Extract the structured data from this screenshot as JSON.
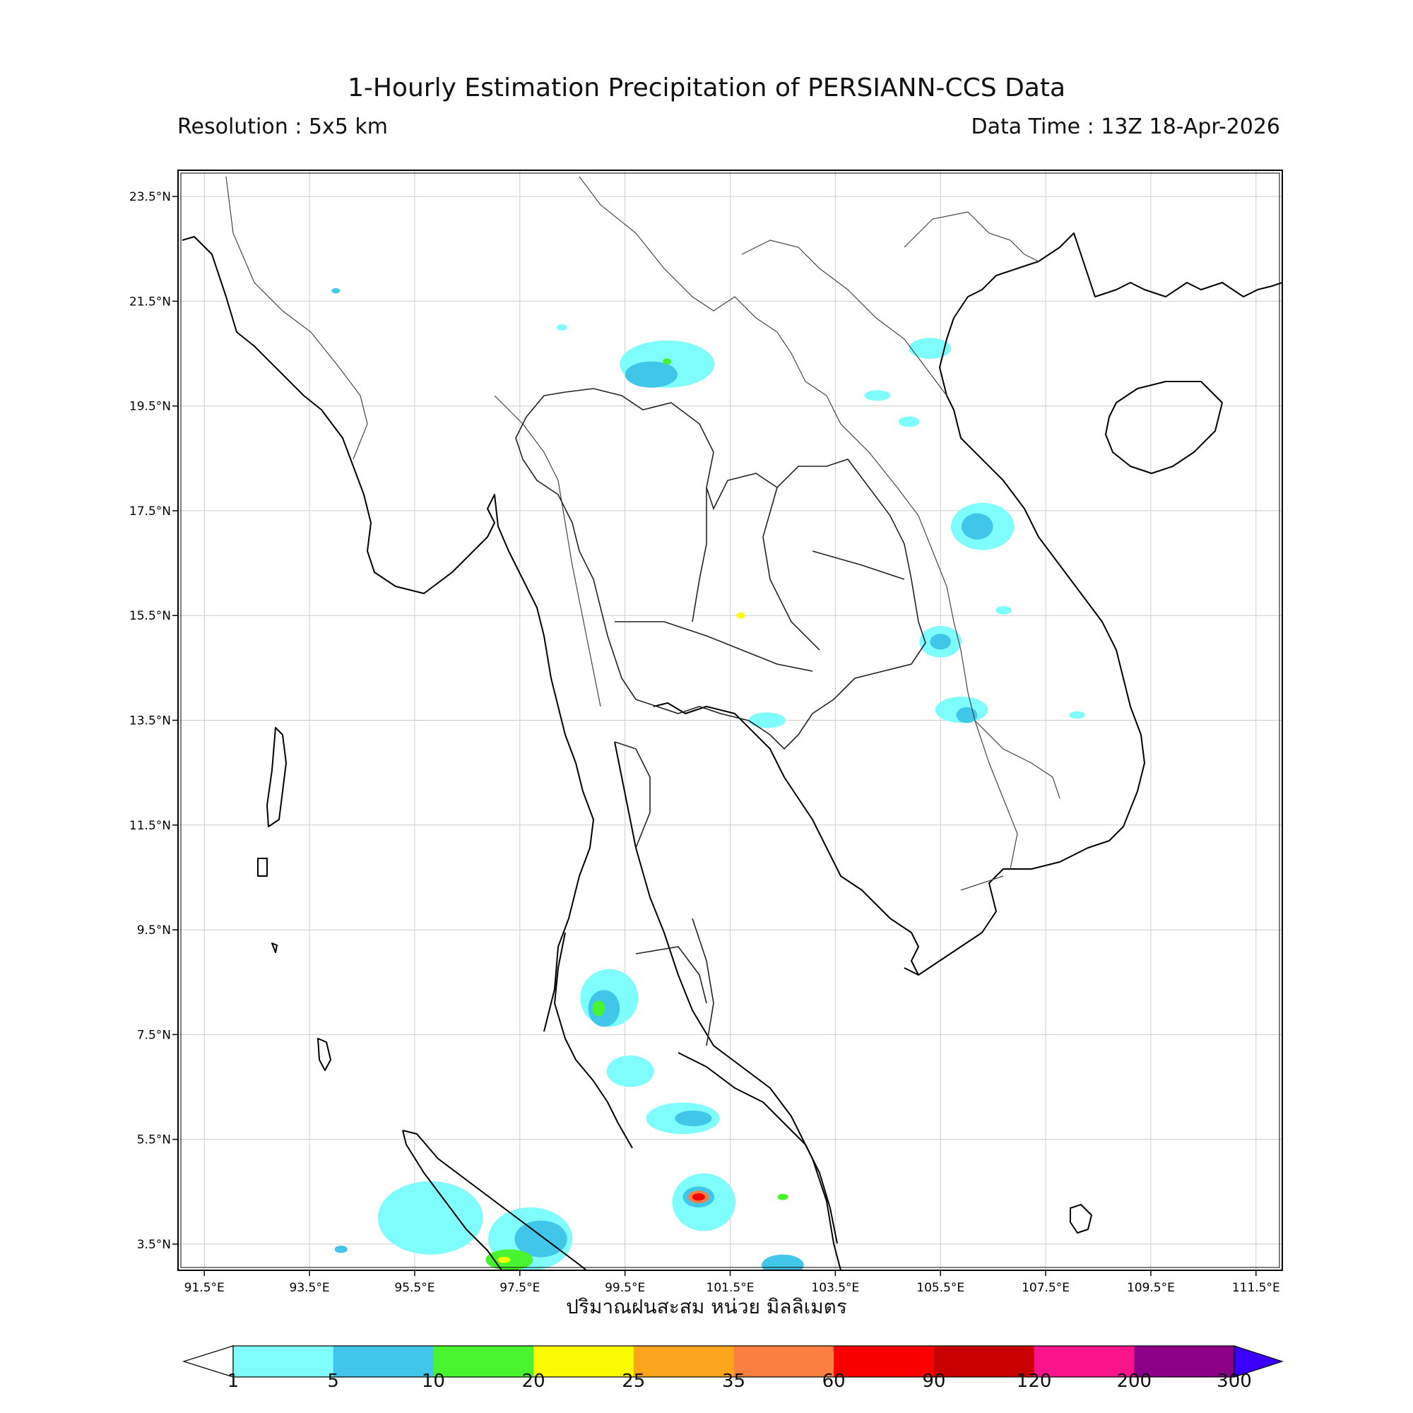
{
  "header": {
    "title": "1-Hourly Estimation Precipitation of PERSIANN-CCS Data",
    "resolution": "Resolution : 5x5 km",
    "data_time": "Data Time : 13Z 18-Apr-2026"
  },
  "axis": {
    "xlabel": "ปริมาณฝนสะสม หน่วย มิลลิเมตร",
    "lon_ticks": [
      "91.5°E",
      "93.5°E",
      "95.5°E",
      "97.5°E",
      "99.5°E",
      "101.5°E",
      "103.5°E",
      "105.5°E",
      "107.5°E",
      "109.5°E",
      "111.5°E"
    ],
    "lat_ticks": [
      "23.5°N",
      "21.5°N",
      "19.5°N",
      "17.5°N",
      "15.5°N",
      "13.5°N",
      "11.5°N",
      "9.5°N",
      "7.5°N",
      "5.5°N",
      "3.5°N"
    ]
  },
  "map": {
    "lon_range": [
      91.0,
      112.0
    ],
    "lat_range": [
      3.0,
      24.0
    ],
    "grid": true,
    "colors": {
      "coast": "#000000",
      "admin": "#555555",
      "grid": "#cccccc"
    }
  },
  "colorbar": {
    "labels": [
      "1",
      "5",
      "10",
      "20",
      "25",
      "35",
      "60",
      "90",
      "120",
      "200",
      "300"
    ],
    "colors": [
      "#7ffcfc",
      "#3fc6e8",
      "#48f42e",
      "#fbfb00",
      "#faa51c",
      "#fb8040",
      "#fb0000",
      "#c80000",
      "#fa148c",
      "#8c0087",
      "#3b00fb"
    ]
  },
  "rain_cells": [
    {
      "lon": 100.3,
      "lat": 20.3,
      "rx": 0.9,
      "ry": 0.45,
      "level": 1
    },
    {
      "lon": 100.0,
      "lat": 20.1,
      "rx": 0.5,
      "ry": 0.25,
      "level": 2
    },
    {
      "lon": 100.3,
      "lat": 20.35,
      "rx": 0.08,
      "ry": 0.06,
      "level": 3
    },
    {
      "lon": 105.3,
      "lat": 20.6,
      "rx": 0.4,
      "ry": 0.2,
      "level": 1
    },
    {
      "lon": 106.3,
      "lat": 17.2,
      "rx": 0.6,
      "ry": 0.45,
      "level": 1
    },
    {
      "lon": 106.2,
      "lat": 17.2,
      "rx": 0.3,
      "ry": 0.25,
      "level": 2
    },
    {
      "lon": 105.5,
      "lat": 15.0,
      "rx": 0.4,
      "ry": 0.3,
      "level": 1
    },
    {
      "lon": 105.5,
      "lat": 15.0,
      "rx": 0.2,
      "ry": 0.15,
      "level": 2
    },
    {
      "lon": 105.9,
      "lat": 13.7,
      "rx": 0.5,
      "ry": 0.25,
      "level": 1
    },
    {
      "lon": 106.0,
      "lat": 13.6,
      "rx": 0.2,
      "ry": 0.15,
      "level": 2
    },
    {
      "lon": 102.2,
      "lat": 13.5,
      "rx": 0.35,
      "ry": 0.15,
      "level": 1
    },
    {
      "lon": 101.7,
      "lat": 15.5,
      "rx": 0.08,
      "ry": 0.06,
      "level": 4
    },
    {
      "lon": 99.2,
      "lat": 8.2,
      "rx": 0.55,
      "ry": 0.55,
      "level": 1
    },
    {
      "lon": 99.1,
      "lat": 8.0,
      "rx": 0.3,
      "ry": 0.35,
      "level": 2
    },
    {
      "lon": 99.0,
      "lat": 8.0,
      "rx": 0.12,
      "ry": 0.15,
      "level": 3
    },
    {
      "lon": 99.6,
      "lat": 6.8,
      "rx": 0.45,
      "ry": 0.3,
      "level": 1
    },
    {
      "lon": 100.6,
      "lat": 5.9,
      "rx": 0.7,
      "ry": 0.3,
      "level": 1
    },
    {
      "lon": 100.8,
      "lat": 5.9,
      "rx": 0.35,
      "ry": 0.15,
      "level": 2
    },
    {
      "lon": 101.0,
      "lat": 4.3,
      "rx": 0.6,
      "ry": 0.55,
      "level": 1
    },
    {
      "lon": 100.9,
      "lat": 4.4,
      "rx": 0.3,
      "ry": 0.2,
      "level": 2
    },
    {
      "lon": 100.9,
      "lat": 4.4,
      "rx": 0.2,
      "ry": 0.12,
      "level": 6
    },
    {
      "lon": 100.9,
      "lat": 4.4,
      "rx": 0.12,
      "ry": 0.07,
      "level": 7
    },
    {
      "lon": 102.5,
      "lat": 4.4,
      "rx": 0.1,
      "ry": 0.06,
      "level": 3
    },
    {
      "lon": 95.8,
      "lat": 4.0,
      "rx": 1.0,
      "ry": 0.7,
      "level": 1
    },
    {
      "lon": 97.7,
      "lat": 3.6,
      "rx": 0.8,
      "ry": 0.6,
      "level": 1
    },
    {
      "lon": 97.9,
      "lat": 3.6,
      "rx": 0.5,
      "ry": 0.35,
      "level": 2
    },
    {
      "lon": 97.3,
      "lat": 3.2,
      "rx": 0.45,
      "ry": 0.2,
      "level": 3
    },
    {
      "lon": 97.2,
      "lat": 3.2,
      "rx": 0.12,
      "ry": 0.06,
      "level": 4
    },
    {
      "lon": 102.5,
      "lat": 3.1,
      "rx": 0.4,
      "ry": 0.2,
      "level": 2
    },
    {
      "lon": 98.3,
      "lat": 21.0,
      "rx": 0.1,
      "ry": 0.06,
      "level": 1
    },
    {
      "lon": 94.0,
      "lat": 21.7,
      "rx": 0.08,
      "ry": 0.05,
      "level": 2
    },
    {
      "lon": 104.3,
      "lat": 19.7,
      "rx": 0.25,
      "ry": 0.1,
      "level": 1
    },
    {
      "lon": 104.9,
      "lat": 19.2,
      "rx": 0.2,
      "ry": 0.1,
      "level": 1
    },
    {
      "lon": 106.7,
      "lat": 15.6,
      "rx": 0.15,
      "ry": 0.08,
      "level": 1
    },
    {
      "lon": 108.1,
      "lat": 13.6,
      "rx": 0.15,
      "ry": 0.07,
      "level": 1
    },
    {
      "lon": 94.1,
      "lat": 3.4,
      "rx": 0.12,
      "ry": 0.07,
      "level": 2
    }
  ]
}
